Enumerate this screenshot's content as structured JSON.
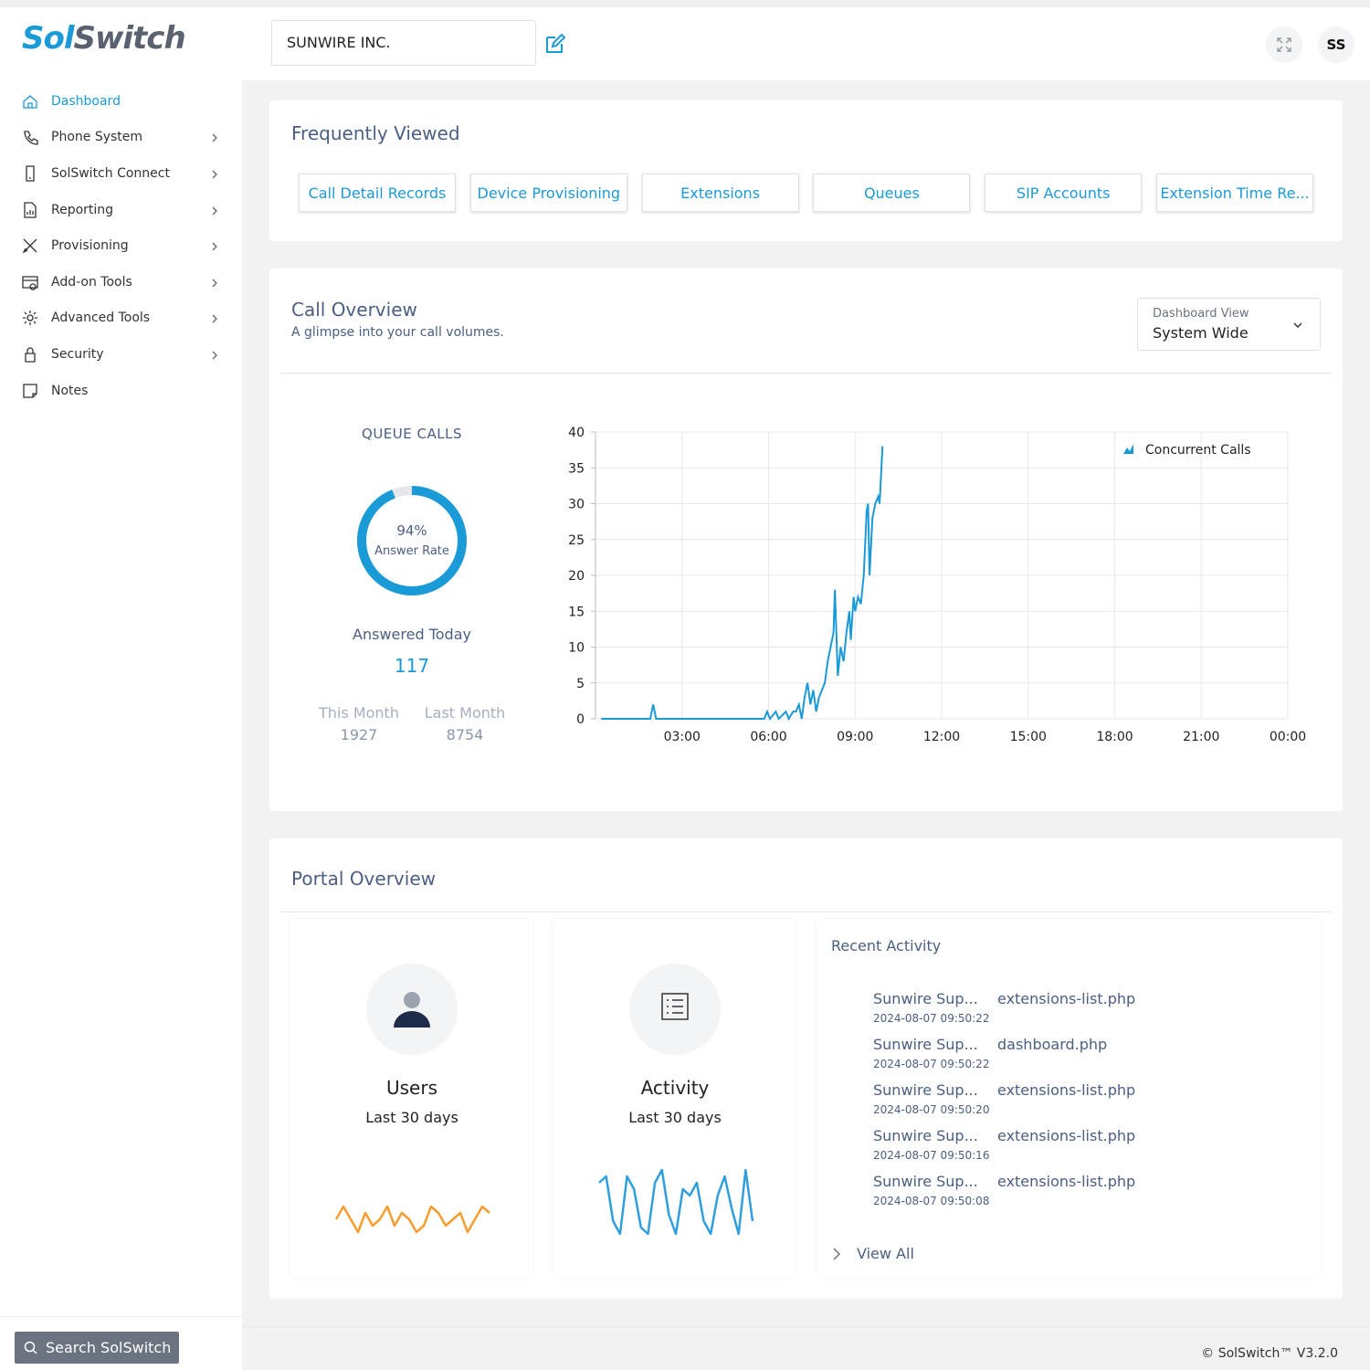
{
  "header": {
    "logo": [
      "Sol",
      "Switch"
    ],
    "company": "SUNWIRE INC.",
    "user_initials": "SS"
  },
  "sidebar": {
    "items": [
      "Dashboard",
      "Phone System",
      "SolSwitch Connect",
      "Reporting",
      "Provisioning",
      "Add-on Tools",
      "Advanced Tools",
      "Security",
      "Notes"
    ],
    "search": "Search SolSwitch"
  },
  "frequently_viewed": {
    "title": "Frequently Viewed",
    "links": [
      "Call Detail Records",
      "Device Provisioning",
      "Extensions",
      "Queues",
      "SIP Accounts",
      "Extension Time Re..."
    ]
  },
  "call_overview": {
    "title": "Call Overview",
    "subtitle": "A glimpse into your call volumes.",
    "view_label": "Dashboard View",
    "view_value": "System Wide",
    "queue_title": "QUEUE CALLS",
    "answer_rate": 94,
    "answer_rate_label": "94%",
    "answer_rate_caption": "Answer Rate",
    "answered_today_label": "Answered Today",
    "answered_today": 117,
    "this_month_label": "This Month",
    "this_month": 1927,
    "last_month_label": "Last Month",
    "last_month": 8754
  },
  "chart_data": {
    "type": "line",
    "x": [
      0.2,
      1.9,
      2.0,
      2.1,
      5.85,
      5.95,
      6.05,
      6.25,
      6.35,
      6.6,
      6.7,
      6.85,
      6.95,
      7.05,
      7.15,
      7.25,
      7.35,
      7.45,
      7.55,
      7.65,
      7.75,
      7.85,
      7.95,
      8.05,
      8.15,
      8.25,
      8.3,
      8.4,
      8.5,
      8.6,
      8.7,
      8.8,
      8.85,
      8.95,
      9.0,
      9.1,
      9.2,
      9.3,
      9.4,
      9.45,
      9.5,
      9.6,
      9.7,
      9.8,
      9.85,
      9.95
    ],
    "series": [
      {
        "name": "Concurrent Calls",
        "color": "#1a9ad6",
        "values": [
          0,
          0,
          2,
          0,
          0,
          1,
          0,
          1,
          0,
          1,
          0,
          1,
          1,
          2,
          0,
          3,
          5,
          2,
          4,
          1,
          3,
          4,
          5,
          8,
          10,
          12,
          18,
          6,
          10,
          8,
          12,
          15,
          11,
          17,
          15,
          17,
          16,
          20,
          29,
          30,
          20,
          28,
          30,
          31,
          30,
          38
        ]
      }
    ],
    "xlim": [
      0,
      24
    ],
    "ylim": [
      0,
      40
    ],
    "xticks": [
      {
        "value": 3,
        "label": "03:00"
      },
      {
        "value": 6,
        "label": "06:00"
      },
      {
        "value": 9,
        "label": "09:00"
      },
      {
        "value": 12,
        "label": "12:00"
      },
      {
        "value": 15,
        "label": "15:00"
      },
      {
        "value": 18,
        "label": "18:00"
      },
      {
        "value": 21,
        "label": "21:00"
      },
      {
        "value": 24,
        "label": "00:00"
      }
    ],
    "yticks": [
      0,
      5,
      10,
      15,
      20,
      25,
      30,
      35,
      40
    ],
    "grid": true,
    "legend": "upper right"
  },
  "portal_overview": {
    "title": "Portal Overview",
    "users": {
      "title": "Users",
      "period": "Last 30 days",
      "color": "#f59e2f",
      "sparkline": [
        3,
        5,
        3,
        1,
        4,
        2,
        3,
        5,
        2,
        4,
        3,
        1,
        2,
        5,
        4,
        2,
        3,
        4,
        1,
        3,
        5,
        4
      ]
    },
    "activity": {
      "title": "Activity",
      "period": "Last 30 days",
      "color": "#2f9fe0",
      "sparkline": [
        8,
        9,
        2,
        0,
        9,
        7,
        1,
        0,
        8,
        10,
        3,
        0,
        7,
        6,
        8,
        2,
        0,
        6,
        9,
        4,
        0,
        10,
        2
      ]
    },
    "recent_activity": {
      "title": "Recent Activity",
      "view_all": "View All",
      "rows": [
        {
          "user": "Sunwire Sup...",
          "time": "2024-08-07 09:50:22",
          "page": "extensions-list.php"
        },
        {
          "user": "Sunwire Sup...",
          "time": "2024-08-07 09:50:22",
          "page": "dashboard.php"
        },
        {
          "user": "Sunwire Sup...",
          "time": "2024-08-07 09:50:20",
          "page": "extensions-list.php"
        },
        {
          "user": "Sunwire Sup...",
          "time": "2024-08-07 09:50:16",
          "page": "extensions-list.php"
        },
        {
          "user": "Sunwire Sup...",
          "time": "2024-08-07 09:50:08",
          "page": "extensions-list.php"
        }
      ]
    }
  },
  "footer": "© SolSwitch™ V3.2.0"
}
